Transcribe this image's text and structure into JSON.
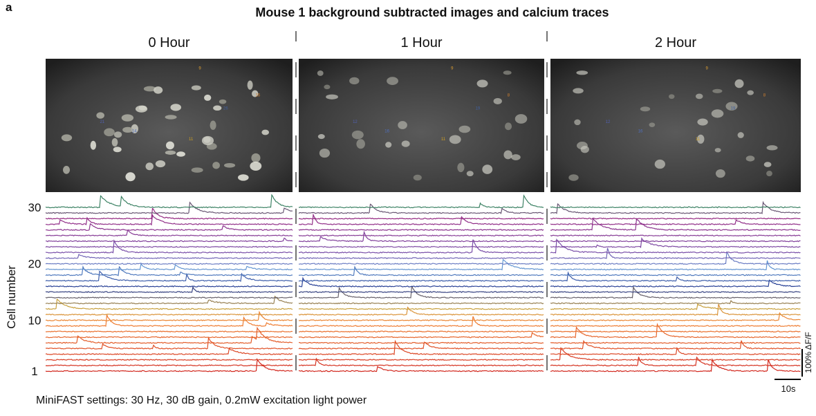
{
  "panel_label": "a",
  "title": "Mouse 1 background subtracted images and calcium traces",
  "sessions": [
    {
      "label": "0 Hour",
      "roi_labels": [
        "9",
        "16",
        "14",
        "11",
        "21",
        "26"
      ]
    },
    {
      "label": "1 Hour",
      "roi_labels": [
        "9",
        "8",
        "16",
        "11",
        "12",
        "19"
      ]
    },
    {
      "label": "2 Hour",
      "roi_labels": [
        "9",
        "8",
        "16",
        "11",
        "12",
        "19"
      ]
    }
  ],
  "y_axis": {
    "label": "Cell number",
    "ticks": [
      1,
      10,
      20,
      30
    ]
  },
  "scale_bar": {
    "vertical": "100% ΔF/F",
    "horizontal": "10s"
  },
  "footer": "MiniFAST settings: 30 Hz, 30 dB gain, 0.2mW excitation light power"
}
